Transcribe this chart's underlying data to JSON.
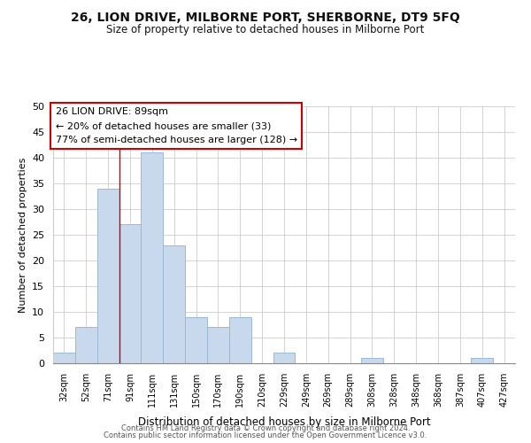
{
  "title": "26, LION DRIVE, MILBORNE PORT, SHERBORNE, DT9 5FQ",
  "subtitle": "Size of property relative to detached houses in Milborne Port",
  "xlabel": "Distribution of detached houses by size in Milborne Port",
  "ylabel": "Number of detached properties",
  "bar_color": "#c8d9ee",
  "bar_edge_color": "#9ab8d4",
  "categories": [
    "32sqm",
    "52sqm",
    "71sqm",
    "91sqm",
    "111sqm",
    "131sqm",
    "150sqm",
    "170sqm",
    "190sqm",
    "210sqm",
    "229sqm",
    "249sqm",
    "269sqm",
    "289sqm",
    "308sqm",
    "328sqm",
    "348sqm",
    "368sqm",
    "387sqm",
    "407sqm",
    "427sqm"
  ],
  "values": [
    2,
    7,
    34,
    27,
    41,
    23,
    9,
    7,
    9,
    0,
    2,
    0,
    0,
    0,
    1,
    0,
    0,
    0,
    0,
    1,
    0
  ],
  "ylim": [
    0,
    50
  ],
  "yticks": [
    0,
    5,
    10,
    15,
    20,
    25,
    30,
    35,
    40,
    45,
    50
  ],
  "marker_bar_index": 2,
  "marker_color": "#cc0000",
  "ann_line1": "26 LION DRIVE: 89sqm",
  "ann_line2": "← 20% of detached houses are smaller (33)",
  "ann_line3": "77% of semi-detached houses are larger (128) →",
  "footer1": "Contains HM Land Registry data © Crown copyright and database right 2024.",
  "footer2": "Contains public sector information licensed under the Open Government Licence v3.0.",
  "background_color": "#ffffff",
  "grid_color": "#cccccc"
}
